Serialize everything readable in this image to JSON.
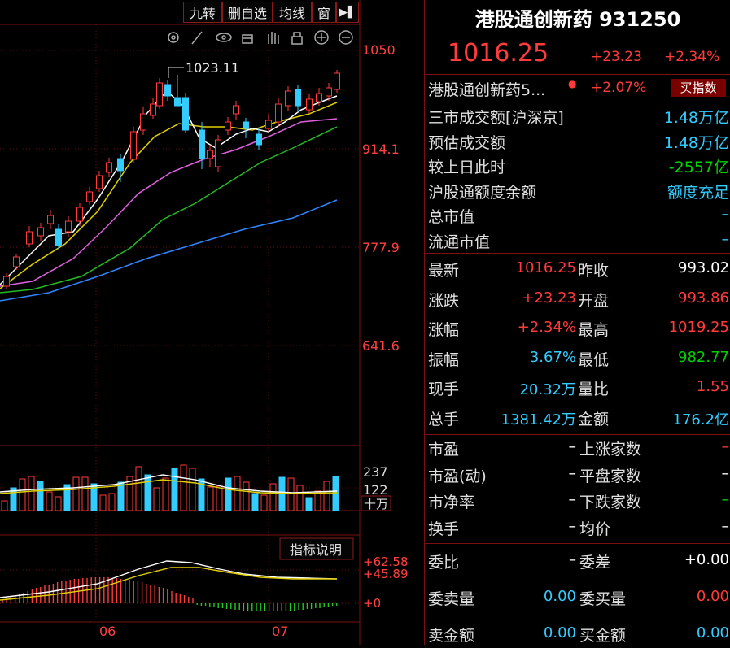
{
  "toolbar": {
    "btn1": "九转",
    "btn2": "删自选",
    "btn3": "均线",
    "btn4": "窗",
    "btn5": "▶▌"
  },
  "chart": {
    "price_labels": [
      "1050",
      "914.1",
      "777.9",
      "641.6"
    ],
    "high_annotation": "1023.11",
    "vol_labels": [
      "237",
      "122",
      "十万"
    ],
    "macd_labels": [
      "+62.58",
      "+45.89",
      "+0"
    ],
    "indicator_btn": "指标说明",
    "months": [
      "06",
      "07"
    ]
  },
  "header": {
    "title": "港股通创新药 931250",
    "price": "1016.25",
    "change": "+23.23",
    "pct": "+2.34%"
  },
  "related": {
    "name": "港股通创新药5...",
    "pct": "+2.07%",
    "btn": "买指数"
  },
  "info1": [
    {
      "label": "三市成交额[沪深京]",
      "value": "1.48万亿",
      "color": "cyan"
    },
    {
      "label": "预估成交额",
      "value": "1.48万亿",
      "color": "cyan"
    },
    {
      "label": "较上日此时",
      "value": "-2557亿",
      "color": "green"
    },
    {
      "label": "沪股通额度余额",
      "value": "额度充足",
      "color": "cyan"
    },
    {
      "label": "总市值",
      "value": "–",
      "color": "cyan"
    },
    {
      "label": "流通市值",
      "value": "–",
      "color": "cyan"
    }
  ],
  "quote": [
    {
      "l1": "最新",
      "v1": "1016.25",
      "c1": "red",
      "l2": "昨收",
      "v2": "993.02",
      "c2": "white"
    },
    {
      "l1": "涨跌",
      "v1": "+23.23",
      "c1": "red",
      "l2": "开盘",
      "v2": "993.86",
      "c2": "red"
    },
    {
      "l1": "涨幅",
      "v1": "+2.34%",
      "c1": "red",
      "l2": "最高",
      "v2": "1019.25",
      "c2": "red"
    },
    {
      "l1": "振幅",
      "v1": "3.67%",
      "c1": "cyan",
      "l2": "最低",
      "v2": "982.77",
      "c2": "green"
    },
    {
      "l1": "现手",
      "v1": "20.32万",
      "c1": "cyan",
      "l2": "量比",
      "v2": "1.55",
      "c2": "red"
    },
    {
      "l1": "总手",
      "v1": "1381.42万",
      "c1": "cyan",
      "l2": "金额",
      "v2": "176.2亿",
      "c2": "cyan"
    }
  ],
  "stats": [
    {
      "l1": "市盈",
      "v1": "–",
      "l2": "上涨家数",
      "v2": "–",
      "c2": "red"
    },
    {
      "l1": "市盈(动)",
      "v1": "–",
      "l2": "平盘家数",
      "v2": "–",
      "c2": "white"
    },
    {
      "l1": "市净率",
      "v1": "–",
      "l2": "下跌家数",
      "v2": "–",
      "c2": "green"
    },
    {
      "l1": "换手",
      "v1": "–",
      "l2": "均价",
      "v2": "–",
      "c2": "white"
    }
  ],
  "orders": [
    {
      "l1": "委比",
      "v1": "–",
      "c1": "white",
      "l2": "委差",
      "v2": "+0.00",
      "c2": "white"
    },
    {
      "l1": "委卖量",
      "v1": "0.00",
      "c1": "cyan",
      "l2": "委买量",
      "v2": "0.00",
      "c2": "red"
    },
    {
      "l1": "卖金额",
      "v1": "0.00",
      "c1": "cyan",
      "l2": "买金额",
      "v2": "0.00",
      "c2": "cyan"
    }
  ]
}
